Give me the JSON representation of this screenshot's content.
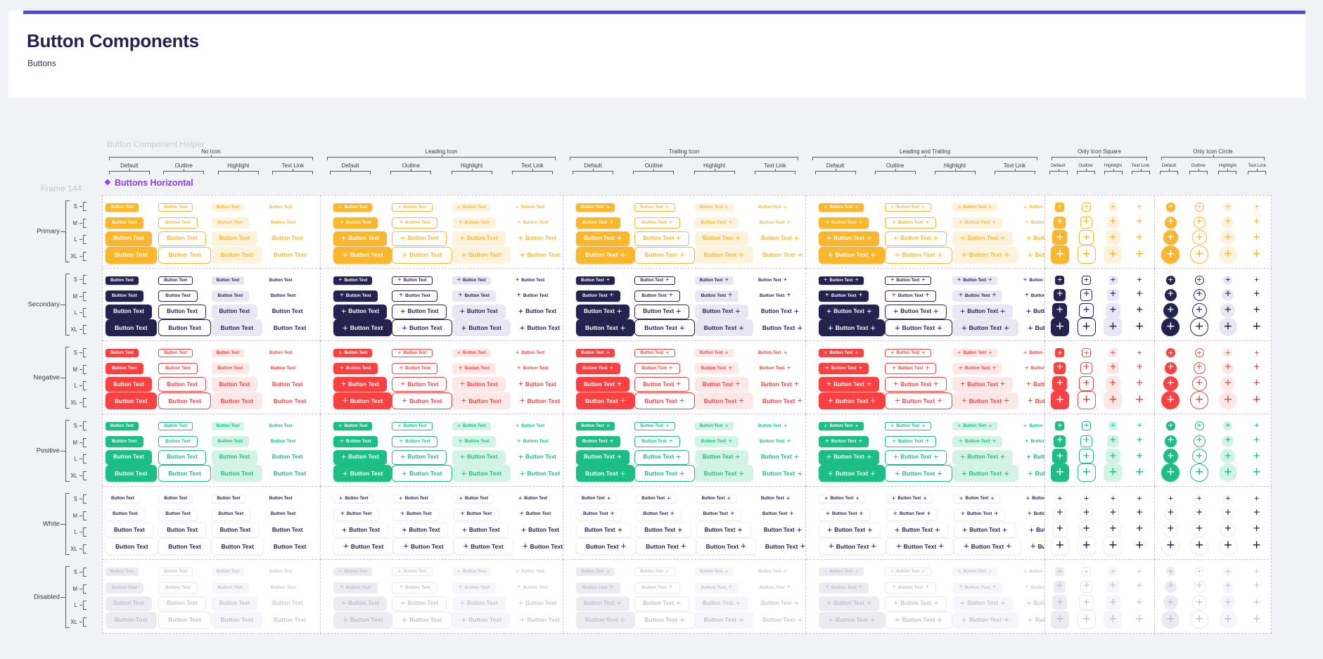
{
  "header": {
    "title": "Button Components",
    "subtitle": "Buttons"
  },
  "canvas": {
    "helper_title": "Button Component Helper",
    "frame_label": "Frame 144",
    "component": {
      "icon": "❖",
      "label": "Buttons Horizontal"
    }
  },
  "grid": {
    "button_text": "Button Text",
    "plus_icon": "+",
    "sub_columns": [
      "Default",
      "Outline",
      "Highlight",
      "Text Link"
    ],
    "sizes": [
      "S",
      "M",
      "L",
      "XL"
    ],
    "groups": [
      {
        "label": "No Icon",
        "variant": "no-icon"
      },
      {
        "label": "Leading Icon",
        "variant": "leading-icon"
      },
      {
        "label": "Trailing Icon",
        "variant": "trailing-icon"
      },
      {
        "label": "Leading and Trailing",
        "variant": "leading-and-trailing"
      },
      {
        "label": "Only Icon Square",
        "variant": "only-icon-square"
      },
      {
        "label": "Only Icon Circle",
        "variant": "only-icon-circle"
      }
    ],
    "states": [
      {
        "label": "Primary",
        "fill": "#FBB72C",
        "on_fill": "#FFFFFF",
        "outline_bg": "#FFFFFF",
        "outline_border": "#FBB72C",
        "outline_text": "#FBB72C",
        "highlight_bg": "#FDF3DC",
        "highlight_text": "#FBB72C",
        "link_text": "#FBB72C",
        "subtle": false,
        "shadow": true
      },
      {
        "label": "Secondary",
        "fill": "#262250",
        "on_fill": "#FFFFFF",
        "outline_bg": "#FFFFFF",
        "outline_border": "#262250",
        "outline_text": "#262250",
        "highlight_bg": "#E9E7F3",
        "highlight_text": "#262250",
        "link_text": "#262250",
        "subtle": false,
        "shadow": true
      },
      {
        "label": "Negative",
        "fill": "#FA4141",
        "on_fill": "#FFFFFF",
        "outline_bg": "#FFFFFF",
        "outline_border": "#FA4141",
        "outline_text": "#FA4141",
        "highlight_bg": "#FDE8E8",
        "highlight_text": "#FA4141",
        "link_text": "#FA4141",
        "subtle": false,
        "shadow": true
      },
      {
        "label": "Positive",
        "fill": "#1BBE84",
        "on_fill": "#FFFFFF",
        "outline_bg": "#FFFFFF",
        "outline_border": "#1BBE84",
        "outline_text": "#1BBE84",
        "highlight_bg": "#D2F4E6",
        "highlight_text": "#1BBE84",
        "link_text": "#1BBE84",
        "subtle": false,
        "shadow": true
      },
      {
        "label": "White",
        "fill": "#FFFFFF",
        "on_fill": "#262250",
        "outline_bg": "#FFFFFF",
        "outline_border": "#F2F1F7",
        "outline_text": "#262250",
        "highlight_bg": "#FFFFFF",
        "highlight_text": "#262250",
        "link_text": "#262250",
        "subtle": true,
        "shadow": false
      },
      {
        "label": "Disabled",
        "fill": "#ECEBF2",
        "on_fill": "#BFBDCD",
        "outline_bg": "#FFFFFF",
        "outline_border": "#E9E8F1",
        "outline_text": "#C2C0CF",
        "highlight_bg": "#F6F5FA",
        "highlight_text": "#C2C0CF",
        "link_text": "#C8C6D4",
        "subtle": false,
        "shadow": false
      }
    ]
  },
  "palette": {
    "page_bg": "#F1F2F6",
    "card_bg": "#FFFFFF",
    "accent_bar": "#5047E5",
    "title_text": "#232150",
    "helper_gray": "#C8C8D2",
    "ruler_line": "#5A5A62",
    "component_purple": "#9136E3",
    "dashed_border": "#C7C0F2"
  }
}
